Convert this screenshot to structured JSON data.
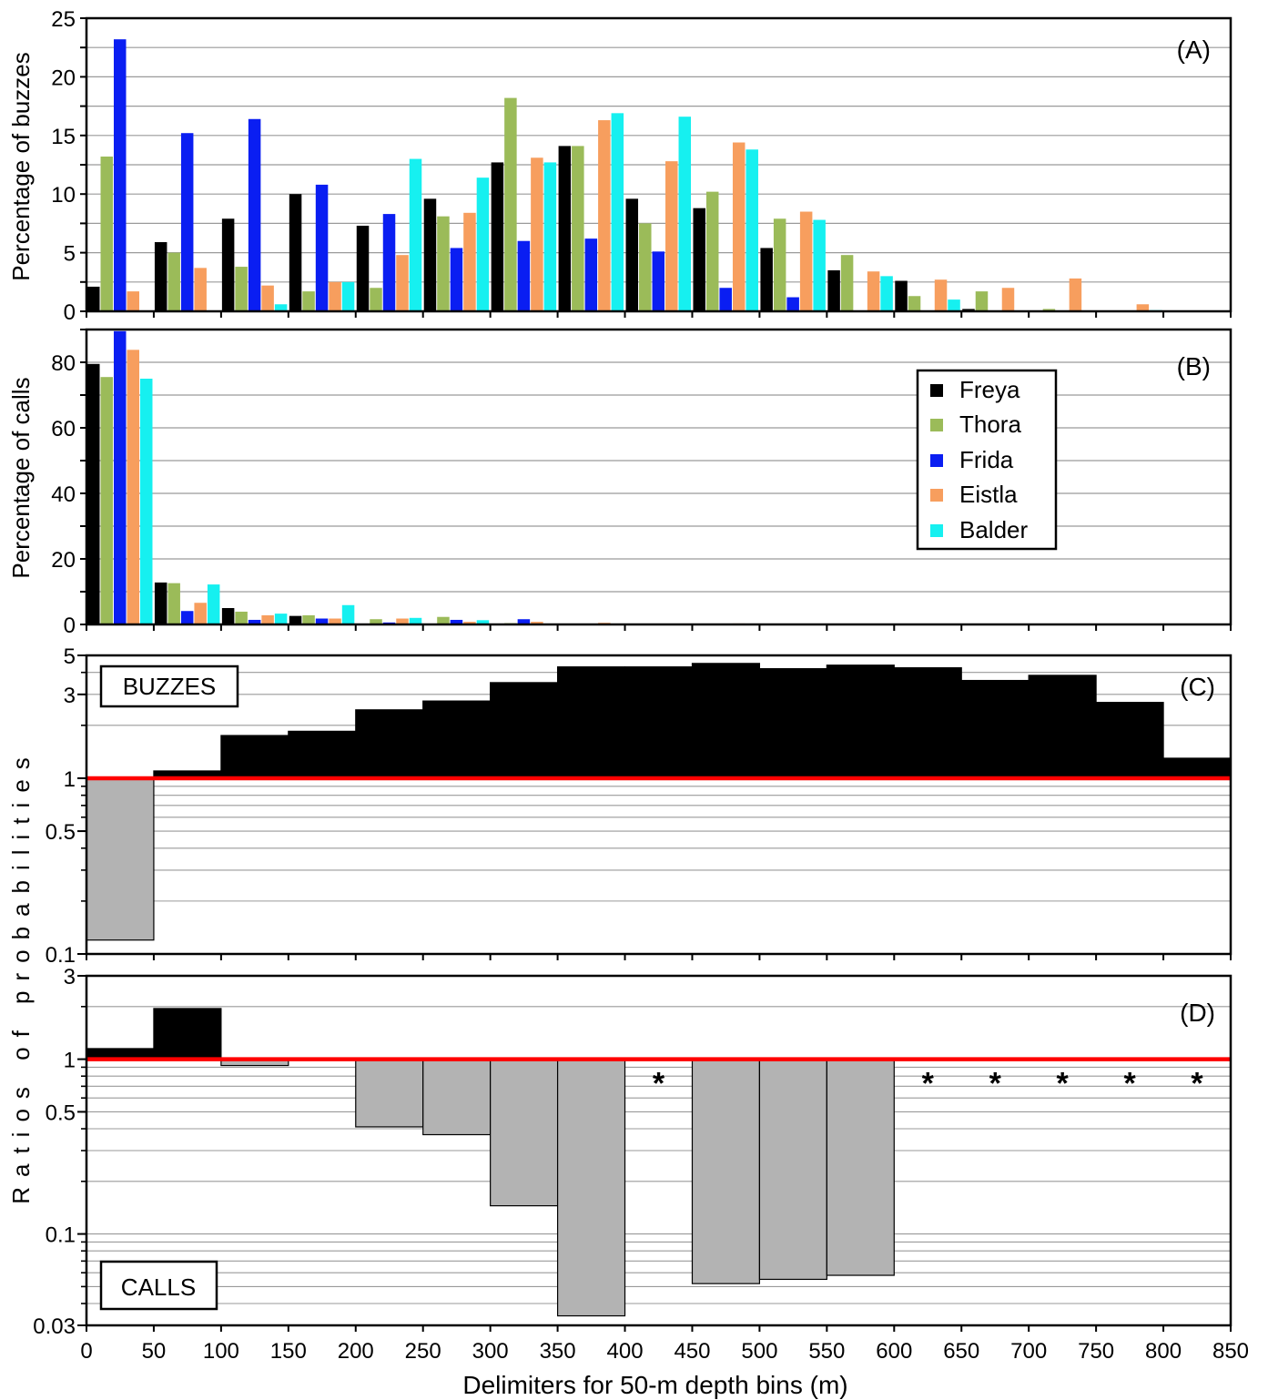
{
  "xaxis": {
    "label": "Delimiters for 50-m depth bins (m)",
    "ticks": [
      0,
      50,
      100,
      150,
      200,
      250,
      300,
      350,
      400,
      450,
      500,
      550,
      600,
      650,
      700,
      750,
      800,
      850
    ]
  },
  "shared_ylabel": "Ratios of probabilities",
  "legend": {
    "placement": "top-right of panel B",
    "items": [
      {
        "name": "Freya",
        "color": "#000000"
      },
      {
        "name": "Thora",
        "color": "#9BBB59"
      },
      {
        "name": "Frida",
        "color": "#0A1EF2"
      },
      {
        "name": "Eistla",
        "color": "#F79E5E"
      },
      {
        "name": "Balder",
        "color": "#16F0F0"
      }
    ]
  },
  "colors": {
    "ratio_above": "#000000",
    "ratio_below": "#b3b3b3",
    "unity_line": "#ff0000",
    "grid": "#9a9a9a"
  },
  "chart_data": [
    {
      "panel": "(A)",
      "type": "bar",
      "ylabel": "Percentage of buzzes",
      "ylim": [
        0,
        25
      ],
      "yticks": [
        0,
        5,
        10,
        15,
        20,
        25
      ],
      "categories": [
        "0-50",
        "50-100",
        "100-150",
        "150-200",
        "200-250",
        "250-300",
        "300-350",
        "350-400",
        "400-450",
        "450-500",
        "500-550",
        "550-600",
        "600-650",
        "650-700",
        "700-750",
        "750-800",
        "800-850"
      ],
      "series": [
        {
          "name": "Freya",
          "values": [
            2.1,
            5.9,
            7.9,
            10.0,
            7.3,
            9.6,
            12.7,
            14.1,
            9.6,
            8.8,
            5.4,
            3.5,
            2.6,
            0.2,
            0,
            0,
            0
          ]
        },
        {
          "name": "Thora",
          "values": [
            13.2,
            5.0,
            3.8,
            1.7,
            2.0,
            8.1,
            18.2,
            14.1,
            7.5,
            10.2,
            7.9,
            4.8,
            1.3,
            1.7,
            0.2,
            0,
            0
          ]
        },
        {
          "name": "Frida",
          "values": [
            23.2,
            15.2,
            16.4,
            10.8,
            8.3,
            5.4,
            6.0,
            6.2,
            5.1,
            2.0,
            1.2,
            0,
            0,
            0,
            0,
            0,
            0
          ]
        },
        {
          "name": "Eistla",
          "values": [
            1.7,
            3.7,
            2.2,
            2.5,
            4.8,
            8.4,
            13.1,
            16.3,
            12.8,
            14.4,
            8.5,
            3.4,
            2.7,
            2.0,
            2.8,
            0.6,
            0
          ]
        },
        {
          "name": "Balder",
          "values": [
            0,
            0,
            0.6,
            2.5,
            13.0,
            11.4,
            12.7,
            16.9,
            16.6,
            13.8,
            7.8,
            3.0,
            1.0,
            0,
            0,
            0.1,
            0
          ]
        }
      ]
    },
    {
      "panel": "(B)",
      "type": "bar",
      "ylabel": "Percentage of calls",
      "ylim": [
        0,
        90
      ],
      "yticks": [
        0,
        20,
        40,
        60,
        80
      ],
      "categories": [
        "0-50",
        "50-100",
        "100-150",
        "150-200",
        "200-250",
        "250-300",
        "300-350",
        "350-400",
        "400-450",
        "450-500",
        "500-550",
        "550-600",
        "600-650",
        "650-700",
        "700-750",
        "750-800",
        "800-850"
      ],
      "series": [
        {
          "name": "Freya",
          "values": [
            79.5,
            12.8,
            5.0,
            2.6,
            0,
            0,
            0,
            0,
            0,
            0,
            0,
            0,
            0,
            0,
            0,
            0,
            0
          ]
        },
        {
          "name": "Thora",
          "values": [
            75.5,
            12.6,
            3.9,
            2.8,
            1.6,
            2.3,
            0.4,
            0,
            0,
            0,
            0,
            0,
            0,
            0,
            0,
            0,
            0
          ]
        },
        {
          "name": "Frida",
          "values": [
            89.5,
            4.1,
            1.4,
            1.8,
            0.6,
            1.4,
            1.6,
            0,
            0,
            0,
            0,
            0,
            0,
            0,
            0,
            0,
            0
          ]
        },
        {
          "name": "Eistla",
          "values": [
            83.8,
            6.6,
            2.8,
            1.8,
            1.8,
            0.8,
            0.8,
            0.5,
            0,
            0.3,
            0.2,
            0,
            0,
            0,
            0,
            0,
            0
          ]
        },
        {
          "name": "Balder",
          "values": [
            75.0,
            12.2,
            3.3,
            5.9,
            2.0,
            1.3,
            0,
            0,
            0,
            0,
            0,
            0,
            0,
            0,
            0,
            0,
            0
          ]
        }
      ]
    },
    {
      "panel": "(C)",
      "type": "bar",
      "label": "BUZZES",
      "yscale": "log",
      "ylim": [
        0.1,
        5
      ],
      "yticks": [
        0.1,
        0.5,
        1,
        3,
        5
      ],
      "bin_edges": [
        0,
        50,
        100,
        150,
        200,
        250,
        300,
        350,
        400,
        450,
        500,
        550,
        600,
        650,
        700,
        750,
        800,
        850
      ],
      "values": [
        0.12,
        1.1,
        1.75,
        1.85,
        2.45,
        2.75,
        3.5,
        4.3,
        4.3,
        4.5,
        4.2,
        4.4,
        4.25,
        3.6,
        3.85,
        2.7,
        1.3
      ]
    },
    {
      "panel": "(D)",
      "type": "bar",
      "label": "CALLS",
      "yscale": "log",
      "ylim": [
        0.03,
        3
      ],
      "yticks": [
        0.03,
        0.1,
        0.5,
        1,
        3
      ],
      "bin_edges": [
        0,
        50,
        100,
        150,
        200,
        250,
        300,
        350,
        400,
        450,
        500,
        550,
        600,
        650,
        700,
        750,
        800,
        850
      ],
      "values": [
        1.15,
        1.95,
        0.92,
        null,
        0.41,
        0.37,
        0.145,
        0.034,
        null,
        0.052,
        0.055,
        0.058,
        null,
        null,
        null,
        null,
        null
      ],
      "asterisks": [
        400,
        600,
        650,
        700,
        750,
        800
      ],
      "asterisk_symbol": "*"
    }
  ]
}
